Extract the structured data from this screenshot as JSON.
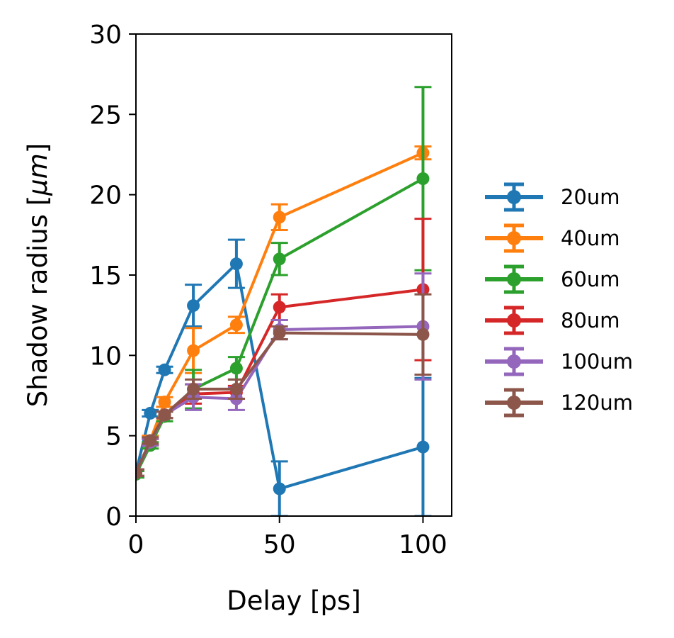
{
  "chart_data": {
    "type": "line",
    "title": "",
    "xlabel": "Delay [ps]",
    "ylabel": "Shadow radius [",
    "ylabel_unit": "μm",
    "ylabel_close": "]",
    "xlim": [
      0,
      110
    ],
    "ylim": [
      0,
      30
    ],
    "xticks": [
      0,
      50,
      100
    ],
    "yticks": [
      0,
      5,
      10,
      15,
      20,
      25,
      30
    ],
    "grid": false,
    "legend_position": "right",
    "series": [
      {
        "name": "20um",
        "color": "#1f77b4",
        "x": [
          0,
          5,
          10,
          20,
          35,
          50,
          100
        ],
        "y": [
          2.7,
          6.4,
          9.1,
          13.1,
          15.7,
          1.7,
          4.3
        ],
        "err": [
          0.2,
          0.2,
          0.2,
          1.3,
          1.5,
          1.7,
          4.3
        ]
      },
      {
        "name": "40um",
        "color": "#ff7f0e",
        "x": [
          0,
          5,
          10,
          20,
          35,
          50,
          100
        ],
        "y": [
          2.7,
          4.7,
          7.1,
          10.3,
          11.9,
          18.6,
          22.6
        ],
        "err": [
          0.2,
          0.3,
          0.3,
          1.4,
          0.5,
          0.8,
          0.4
        ]
      },
      {
        "name": "60um",
        "color": "#2ca02c",
        "x": [
          0,
          5,
          10,
          20,
          35,
          50,
          100
        ],
        "y": [
          2.6,
          4.4,
          6.2,
          7.9,
          9.2,
          16.0,
          21.0
        ],
        "err": [
          0.2,
          0.2,
          0.3,
          1.2,
          0.7,
          1.0,
          5.7
        ]
      },
      {
        "name": "80um",
        "color": "#d62728",
        "x": [
          0,
          5,
          10,
          20,
          35,
          50,
          100
        ],
        "y": [
          2.7,
          4.6,
          6.3,
          7.6,
          7.7,
          13.0,
          14.1
        ],
        "err": [
          0.2,
          0.2,
          0.2,
          0.6,
          0.4,
          0.8,
          4.4
        ]
      },
      {
        "name": "100um",
        "color": "#9467bd",
        "x": [
          0,
          5,
          10,
          20,
          35,
          50,
          100
        ],
        "y": [
          2.7,
          4.6,
          6.3,
          7.4,
          7.3,
          11.6,
          11.8
        ],
        "err": [
          0.2,
          0.2,
          0.2,
          0.8,
          0.7,
          0.6,
          3.3
        ]
      },
      {
        "name": "120um",
        "color": "#8c564b",
        "x": [
          0,
          5,
          10,
          20,
          35,
          50,
          100
        ],
        "y": [
          2.7,
          4.7,
          6.3,
          7.9,
          7.9,
          11.4,
          11.3
        ],
        "err": [
          0.2,
          0.2,
          0.2,
          0.6,
          0.6,
          0.4,
          2.5
        ]
      }
    ]
  }
}
